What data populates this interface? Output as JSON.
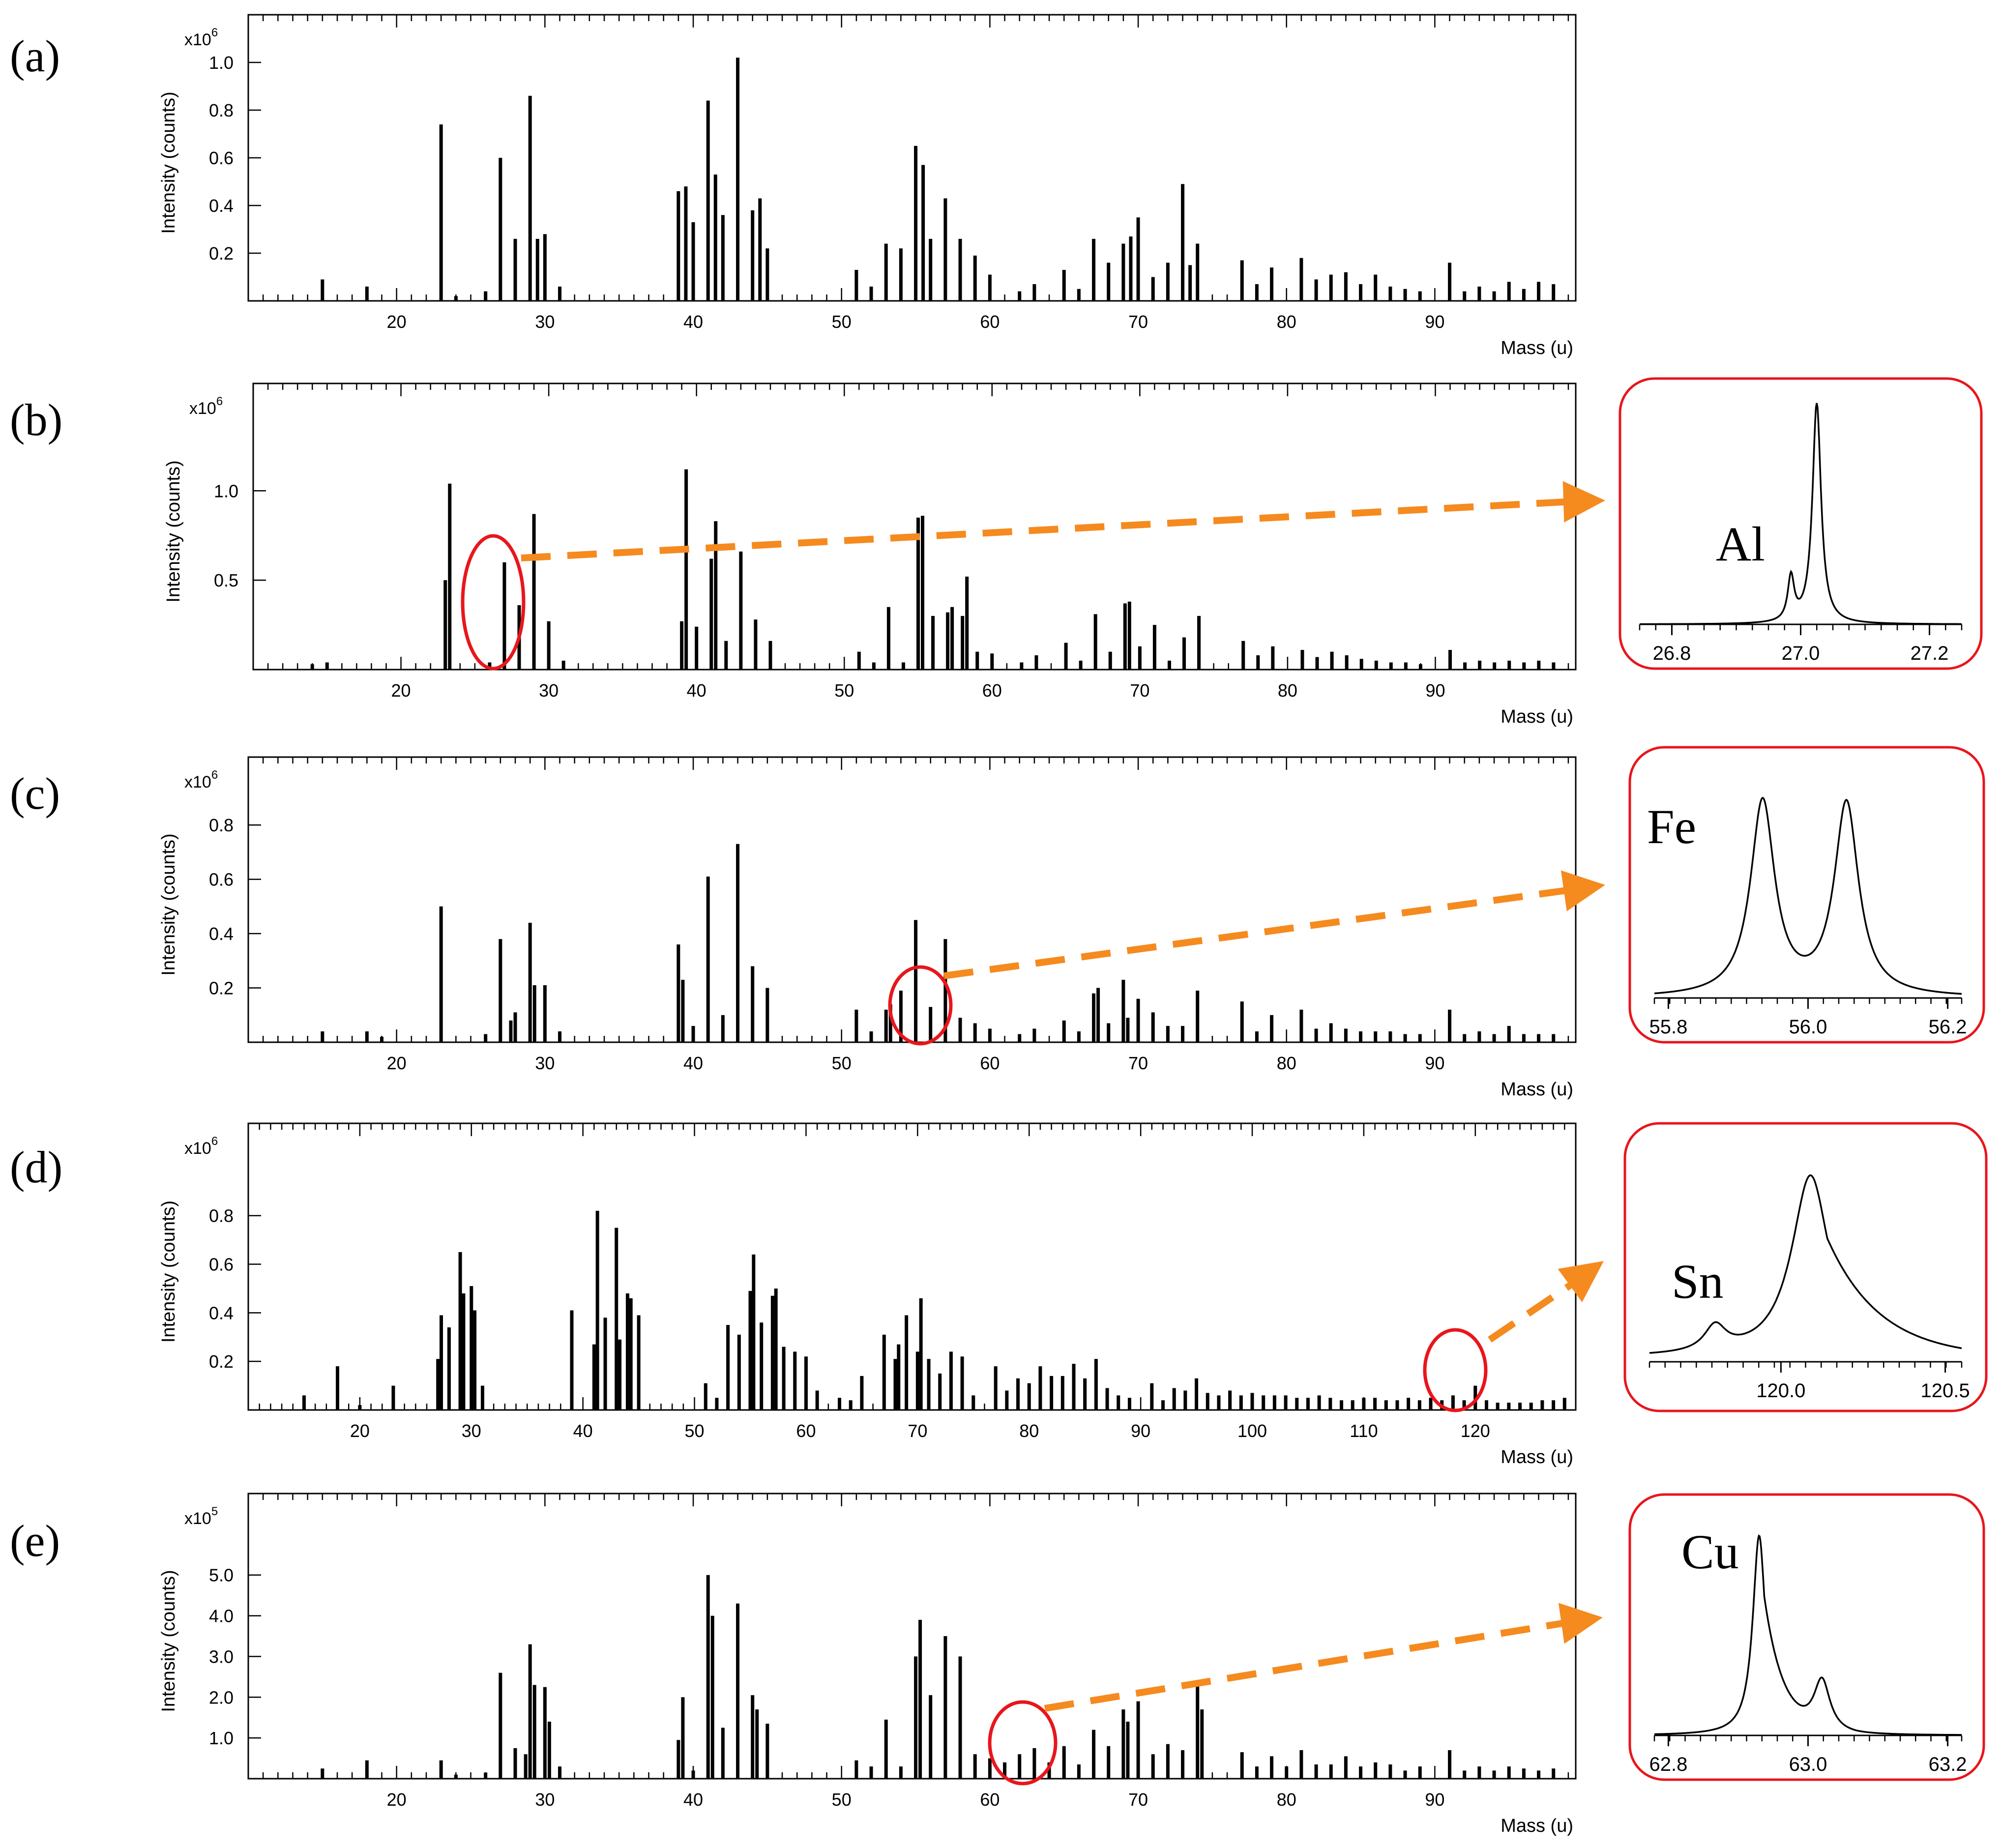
{
  "chart_data": [
    {
      "type": "bar",
      "panel": "(a)",
      "ylabel": "Intensity (counts)",
      "exponent": "x10",
      "exponent_power": "6",
      "xlabel": "Mass (u)",
      "xlim": [
        10,
        99.5
      ],
      "ylim": [
        0,
        1.2
      ],
      "xticks": [
        20,
        30,
        40,
        50,
        60,
        70,
        80,
        90
      ],
      "yticks": [
        0.2,
        0.4,
        0.6,
        0.8,
        1.0
      ],
      "ytick_labels": [
        "0.2",
        "0.4",
        "0.6",
        "0.8",
        "1.0"
      ],
      "x": [
        15,
        18,
        23,
        24,
        26,
        27,
        28,
        29,
        29.5,
        30,
        31,
        39,
        39.5,
        40,
        41,
        41.5,
        42,
        43,
        44,
        44.5,
        45,
        51,
        52,
        53,
        54,
        55,
        55.5,
        56,
        57,
        58,
        59,
        60,
        62,
        63,
        65,
        66,
        67,
        68,
        69,
        69.5,
        70,
        71,
        72,
        73,
        73.5,
        74,
        77,
        78,
        79,
        81,
        82,
        83,
        84,
        85,
        86,
        87,
        88,
        89,
        91,
        92,
        93,
        94,
        95,
        96,
        97,
        98
      ],
      "y": [
        0.09,
        0.06,
        0.74,
        0.02,
        0.04,
        0.6,
        0.26,
        0.86,
        0.26,
        0.28,
        0.06,
        0.46,
        0.48,
        0.33,
        0.84,
        0.53,
        0.36,
        1.02,
        0.38,
        0.43,
        0.22,
        0.13,
        0.06,
        0.24,
        0.22,
        0.65,
        0.57,
        0.26,
        0.43,
        0.26,
        0.19,
        0.11,
        0.04,
        0.07,
        0.13,
        0.05,
        0.26,
        0.16,
        0.24,
        0.27,
        0.35,
        0.1,
        0.16,
        0.49,
        0.15,
        0.24,
        0.17,
        0.07,
        0.14,
        0.18,
        0.09,
        0.11,
        0.12,
        0.07,
        0.11,
        0.06,
        0.05,
        0.04,
        0.16,
        0.04,
        0.06,
        0.04,
        0.08,
        0.05,
        0.08,
        0.07
      ]
    },
    {
      "type": "bar",
      "panel": "(b)",
      "ylabel": "Intensity (counts)",
      "exponent": "x10",
      "exponent_power": "6",
      "xlabel": "Mass (u)",
      "xlim": [
        10,
        99.5
      ],
      "ylim": [
        0,
        1.6
      ],
      "xticks": [
        20,
        30,
        40,
        50,
        60,
        70,
        80,
        90
      ],
      "yticks": [
        0.5,
        1.0
      ],
      "ytick_labels": [
        "0.5",
        "1.0"
      ],
      "x": [
        14,
        15,
        23,
        23.3,
        26,
        27,
        28,
        29,
        30,
        31,
        39,
        39.3,
        40,
        41,
        41.3,
        42,
        43,
        44,
        45,
        51,
        52,
        53,
        54,
        55,
        55.3,
        56,
        57,
        57.3,
        58,
        58.3,
        59,
        60,
        62,
        63,
        65,
        66,
        67,
        68,
        69,
        69.3,
        70,
        71,
        72,
        73,
        74,
        77,
        78,
        79,
        81,
        82,
        83,
        84,
        85,
        86,
        87,
        88,
        89,
        91,
        92,
        93,
        94,
        95,
        96,
        97,
        98
      ],
      "y": [
        0.03,
        0.04,
        0.5,
        1.04,
        0.04,
        0.6,
        0.36,
        0.87,
        0.27,
        0.05,
        0.27,
        1.12,
        0.24,
        0.62,
        0.83,
        0.16,
        0.66,
        0.28,
        0.16,
        0.1,
        0.04,
        0.35,
        0.04,
        0.85,
        0.86,
        0.3,
        0.32,
        0.35,
        0.3,
        0.52,
        0.1,
        0.09,
        0.04,
        0.08,
        0.15,
        0.05,
        0.31,
        0.1,
        0.37,
        0.38,
        0.13,
        0.25,
        0.05,
        0.18,
        0.3,
        0.16,
        0.08,
        0.13,
        0.11,
        0.07,
        0.1,
        0.08,
        0.06,
        0.05,
        0.04,
        0.04,
        0.03,
        0.11,
        0.04,
        0.05,
        0.04,
        0.05,
        0.04,
        0.05,
        0.04
      ]
    },
    {
      "type": "bar",
      "panel": "(c)",
      "ylabel": "Intensity (counts)",
      "exponent": "x10",
      "exponent_power": "6",
      "xlabel": "Mass (u)",
      "xlim": [
        10,
        99.5
      ],
      "ylim": [
        0,
        1.05
      ],
      "xticks": [
        20,
        30,
        40,
        50,
        60,
        70,
        80,
        90
      ],
      "yticks": [
        0.2,
        0.4,
        0.6,
        0.8
      ],
      "ytick_labels": [
        "0.2",
        "0.4",
        "0.6",
        "0.8"
      ],
      "x": [
        15,
        18,
        19,
        23,
        26,
        27,
        27.7,
        28,
        29,
        29.3,
        30,
        31,
        39,
        39.3,
        40,
        41,
        42,
        43,
        44,
        45,
        51,
        52,
        53,
        53.3,
        54,
        55,
        56,
        57,
        58,
        59,
        60,
        62,
        63,
        65,
        66,
        67,
        67.3,
        68,
        69,
        69.3,
        70,
        71,
        72,
        73,
        74,
        77,
        78,
        79,
        81,
        82,
        83,
        84,
        85,
        86,
        87,
        88,
        89,
        91,
        92,
        93,
        94,
        95,
        96,
        97,
        98
      ],
      "y": [
        0.04,
        0.04,
        0.02,
        0.5,
        0.03,
        0.38,
        0.08,
        0.11,
        0.44,
        0.21,
        0.21,
        0.04,
        0.36,
        0.23,
        0.06,
        0.61,
        0.1,
        0.73,
        0.28,
        0.2,
        0.12,
        0.04,
        0.12,
        0.14,
        0.19,
        0.45,
        0.13,
        0.38,
        0.09,
        0.07,
        0.05,
        0.03,
        0.05,
        0.08,
        0.04,
        0.18,
        0.2,
        0.07,
        0.23,
        0.09,
        0.16,
        0.11,
        0.06,
        0.06,
        0.19,
        0.15,
        0.04,
        0.1,
        0.12,
        0.05,
        0.07,
        0.05,
        0.04,
        0.04,
        0.04,
        0.03,
        0.03,
        0.12,
        0.03,
        0.04,
        0.03,
        0.06,
        0.03,
        0.03,
        0.03
      ]
    },
    {
      "type": "bar",
      "panel": "(d)",
      "ylabel": "Intensity (counts)",
      "exponent": "x10",
      "exponent_power": "6",
      "xlabel": "Mass (u)",
      "xlim": [
        10,
        129
      ],
      "ylim": [
        0,
        1.18
      ],
      "xticks": [
        20,
        30,
        40,
        50,
        60,
        70,
        80,
        90,
        100,
        110,
        120
      ],
      "yticks": [
        0.2,
        0.4,
        0.6,
        0.8
      ],
      "ytick_labels": [
        "0.2",
        "0.4",
        "0.6",
        "0.8"
      ],
      "x": [
        15,
        18,
        20,
        23,
        27,
        27.3,
        28,
        29,
        29.3,
        30,
        30.3,
        31,
        39,
        41,
        41.3,
        42,
        43,
        43.3,
        44,
        44.3,
        45,
        51,
        52,
        53,
        54,
        55,
        55.3,
        56,
        57,
        57.3,
        58,
        59,
        60,
        61,
        63,
        64,
        65,
        67,
        68,
        68.3,
        69,
        70,
        70.3,
        71,
        72,
        73,
        74,
        75,
        77,
        78,
        79,
        80,
        81,
        82,
        83,
        84,
        85,
        86,
        87,
        88,
        89,
        91,
        92,
        93,
        94,
        95,
        96,
        97,
        98,
        99,
        100,
        101,
        102,
        103,
        104,
        105,
        106,
        107,
        108,
        109,
        110,
        111,
        112,
        113,
        114,
        115,
        116,
        117,
        118,
        119,
        120,
        121,
        122,
        123,
        124,
        125,
        126,
        127,
        128
      ],
      "y": [
        0.06,
        0.18,
        0.02,
        0.1,
        0.21,
        0.39,
        0.34,
        0.65,
        0.48,
        0.51,
        0.41,
        0.1,
        0.41,
        0.27,
        0.82,
        0.38,
        0.75,
        0.29,
        0.48,
        0.46,
        0.39,
        0.11,
        0.05,
        0.35,
        0.31,
        0.49,
        0.64,
        0.36,
        0.47,
        0.5,
        0.26,
        0.24,
        0.22,
        0.08,
        0.05,
        0.04,
        0.14,
        0.31,
        0.21,
        0.27,
        0.39,
        0.24,
        0.46,
        0.21,
        0.15,
        0.24,
        0.22,
        0.06,
        0.18,
        0.08,
        0.13,
        0.11,
        0.18,
        0.14,
        0.14,
        0.19,
        0.13,
        0.21,
        0.09,
        0.06,
        0.05,
        0.11,
        0.04,
        0.09,
        0.08,
        0.13,
        0.07,
        0.06,
        0.08,
        0.06,
        0.07,
        0.06,
        0.06,
        0.06,
        0.05,
        0.05,
        0.06,
        0.05,
        0.04,
        0.04,
        0.05,
        0.05,
        0.04,
        0.04,
        0.05,
        0.04,
        0.05,
        0.04,
        0.06,
        0.04,
        0.1,
        0.04,
        0.03,
        0.03,
        0.03,
        0.03,
        0.04,
        0.04,
        0.05
      ]
    },
    {
      "type": "bar",
      "panel": "(e)",
      "ylabel": "Intensity (counts)",
      "exponent": "x10",
      "exponent_power": "5",
      "xlabel": "Mass (u)",
      "xlim": [
        10,
        99.5
      ],
      "ylim": [
        0,
        7.0
      ],
      "xticks": [
        20,
        30,
        40,
        50,
        60,
        70,
        80,
        90
      ],
      "yticks": [
        1.0,
        2.0,
        3.0,
        4.0,
        5.0
      ],
      "ytick_labels": [
        "1.0",
        "2.0",
        "3.0",
        "4.0",
        "5.0"
      ],
      "x": [
        15,
        18,
        23,
        24,
        26,
        27,
        28,
        28.7,
        29,
        29.3,
        30,
        30.3,
        31,
        39,
        39.3,
        40,
        41,
        41.3,
        42,
        43,
        44,
        44.3,
        45,
        51,
        52,
        53,
        54,
        55,
        55.3,
        56,
        57,
        58,
        59,
        60,
        61,
        62,
        63,
        64,
        65,
        66,
        67,
        68,
        69,
        69.3,
        70,
        71,
        72,
        73,
        74,
        74.3,
        77,
        78,
        79,
        80,
        81,
        82,
        83,
        84,
        85,
        86,
        87,
        88,
        89,
        91,
        92,
        93,
        94,
        95,
        96,
        97,
        98
      ],
      "y": [
        0.25,
        0.45,
        0.45,
        0.1,
        0.15,
        2.6,
        0.75,
        0.6,
        3.3,
        2.3,
        2.25,
        1.4,
        0.3,
        0.95,
        2.0,
        0.2,
        5.0,
        4.0,
        1.25,
        4.3,
        2.05,
        1.7,
        1.35,
        0.45,
        0.3,
        1.45,
        0.3,
        3.0,
        3.9,
        2.05,
        3.5,
        3.0,
        0.6,
        0.5,
        0.4,
        0.6,
        0.75,
        0.4,
        0.8,
        0.35,
        1.2,
        0.8,
        1.7,
        1.4,
        1.9,
        0.6,
        0.85,
        0.7,
        2.3,
        1.7,
        0.65,
        0.3,
        0.55,
        0.3,
        0.7,
        0.35,
        0.35,
        0.55,
        0.3,
        0.4,
        0.35,
        0.2,
        0.3,
        0.7,
        0.2,
        0.3,
        0.2,
        0.3,
        0.25,
        0.2,
        0.25
      ]
    }
  ],
  "insets": [
    {
      "panel": "(b)",
      "element": "Al",
      "xlim": [
        26.75,
        27.25
      ],
      "xticks": [
        26.8,
        27.0,
        27.2
      ],
      "xtick_labels": [
        "26.8",
        "27.0",
        "27.2"
      ],
      "peaks": [
        {
          "center": 26.985,
          "height": 0.2,
          "width": 0.006
        },
        {
          "center": 27.025,
          "height": 1.0,
          "width": 0.008
        }
      ],
      "baseline": 0.0
    },
    {
      "panel": "(c)",
      "element": "Fe",
      "xlim": [
        55.78,
        56.22
      ],
      "xticks": [
        55.8,
        56.0,
        56.2
      ],
      "xtick_labels": [
        "55.8",
        "56.0",
        "56.2"
      ],
      "peaks": [
        {
          "center": 55.935,
          "height": 0.92,
          "width": 0.021
        },
        {
          "center": 56.055,
          "height": 0.91,
          "width": 0.021
        }
      ],
      "baseline": 0.0
    },
    {
      "panel": "(d)",
      "element": "Sn",
      "xlim": [
        119.6,
        120.55
      ],
      "xticks": [
        120.0,
        120.5
      ],
      "xtick_labels": [
        "120.0",
        "120.5"
      ],
      "peaks": [
        {
          "center": 119.8,
          "height": 0.12,
          "width": 0.04
        },
        {
          "center": 120.09,
          "height": 0.86,
          "width": 0.07,
          "tail": 0.16
        }
      ],
      "baseline": 0.02
    },
    {
      "panel": "(e)",
      "element": "Cu",
      "xlim": [
        62.78,
        63.22
      ],
      "xticks": [
        62.8,
        63.0,
        63.2
      ],
      "xtick_labels": [
        "62.8",
        "63.0",
        "63.2"
      ],
      "peaks": [
        {
          "center": 62.93,
          "height": 0.94,
          "width": 0.011,
          "tail": 0.028
        },
        {
          "center": 63.02,
          "height": 0.24,
          "width": 0.014
        }
      ],
      "baseline": 0.0
    }
  ],
  "colors": {
    "bars": "#000000",
    "highlight_circle": "#e8161c",
    "arrow": "#f58a1f",
    "inset_border": "#e8161c"
  }
}
